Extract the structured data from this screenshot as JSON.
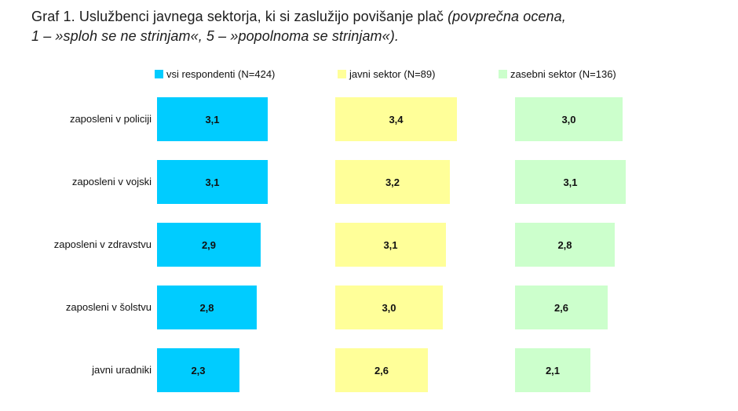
{
  "title": {
    "line1_normal": "Graf 1. Uslužbenci javnega sektorja, ki si zaslužijo povišanje plač ",
    "line1_italic": "(povprečna ocena,",
    "line2_italic": "1 – »sploh se ne strinjam«, 5 – »popolnoma se strinjam«)."
  },
  "legend": [
    {
      "label": "vsi respondenti (N=424)",
      "color": "#00CCFF"
    },
    {
      "label": "javni sektor (N=89)",
      "color": "#FFFF99"
    },
    {
      "label": "zasebni sektor (N=136)",
      "color": "#CCFFCC"
    }
  ],
  "chart_data": {
    "type": "bar",
    "orientation": "horizontal",
    "title": "Graf 1. Uslužbenci javnega sektorja, ki si zaslužijo povišanje plač (povprečna ocena, 1 – »sploh se ne strinjam«, 5 – »popolnoma se strinjam«).",
    "categories": [
      "zaposleni v policiji",
      "zaposleni v vojski",
      "zaposleni v zdravstvu",
      "zaposleni v šolstvu",
      "javni uradniki"
    ],
    "series": [
      {
        "name": "vsi respondenti (N=424)",
        "color": "#00CCFF",
        "values": [
          3.1,
          3.1,
          2.9,
          2.8,
          2.3
        ],
        "labels": [
          "3,1",
          "3,1",
          "2,9",
          "2,8",
          "2,3"
        ]
      },
      {
        "name": "javni sektor (N=89)",
        "color": "#FFFF99",
        "values": [
          3.4,
          3.2,
          3.1,
          3.0,
          2.6
        ],
        "labels": [
          "3,4",
          "3,2",
          "3,1",
          "3,0",
          "2,6"
        ]
      },
      {
        "name": "zasebni sektor (N=136)",
        "color": "#CCFFCC",
        "values": [
          3.0,
          3.1,
          2.8,
          2.6,
          2.1
        ],
        "labels": [
          "3,0",
          "3,1",
          "2,8",
          "2,6",
          "2,1"
        ]
      }
    ],
    "xlim": [
      0,
      5
    ],
    "value_scale": "1 = sploh se ne strinjam, 5 = popolnoma se strinjam",
    "grid": false,
    "legend_position": "top",
    "value_labels": "centered inside bars, comma decimal separator"
  }
}
